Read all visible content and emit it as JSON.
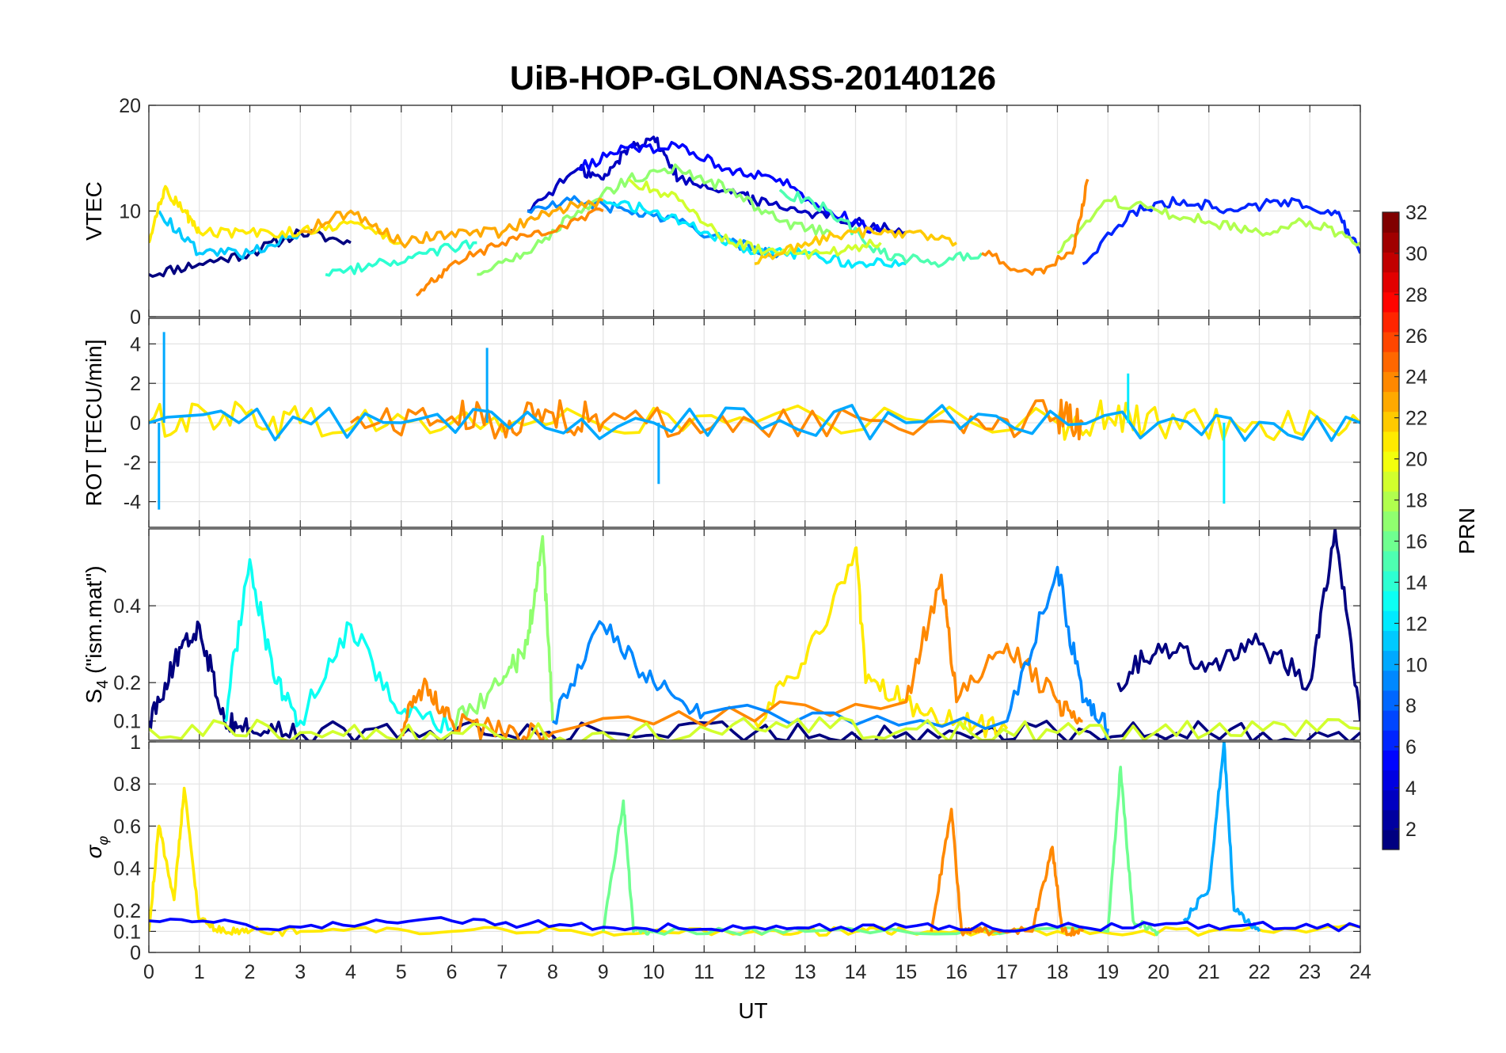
{
  "chart_data": {
    "type": "line",
    "title": "UiB-HOP-GLONASS-20140126",
    "xlabel": "UT",
    "xlim": [
      0,
      24
    ],
    "xticks": [
      "0",
      "1",
      "2",
      "3",
      "4",
      "5",
      "6",
      "7",
      "8",
      "9",
      "10",
      "11",
      "12",
      "13",
      "14",
      "15",
      "16",
      "17",
      "18",
      "19",
      "20",
      "21",
      "22",
      "23",
      "24"
    ],
    "panels": [
      {
        "name": "vtec",
        "ylabel": "VTEC",
        "ylim": [
          0,
          20
        ],
        "yticks": [
          0,
          10,
          20
        ],
        "ytick_labels": [
          "0",
          "10",
          "20"
        ],
        "series": [
          {
            "prn": 1,
            "x": [
              0,
              1,
              2,
              3,
              4
            ],
            "y": [
              4,
              5,
              6,
              8,
              7
            ]
          },
          {
            "prn": 3,
            "x": [
              7.5,
              8.5,
              9,
              9.5,
              10,
              10.5,
              11.5,
              12,
              13,
              14,
              15
            ],
            "y": [
              10,
              14,
              13,
              16,
              17,
              13,
              12,
              11,
              10,
              9,
              8
            ]
          },
          {
            "prn": 5,
            "x": [
              8.5,
              9.5,
              10.5,
              11.5,
              12.5,
              13.5,
              14.5
            ],
            "y": [
              14,
              16,
              16,
              14,
              13,
              10,
              8
            ]
          },
          {
            "prn": 6,
            "x": [
              18.5,
              19.5,
              20.5,
              21.5,
              22.5,
              23.5,
              24
            ],
            "y": [
              5,
              10,
              11,
              10,
              11,
              10,
              6
            ]
          },
          {
            "prn": 9,
            "x": [
              7.5,
              8.5,
              9.5,
              10.5,
              11.5,
              12.5
            ],
            "y": [
              10,
              11,
              10,
              9,
              7,
              6
            ]
          },
          {
            "prn": 11,
            "x": [
              0.2,
              1,
              2,
              3
            ],
            "y": [
              10,
              6,
              6,
              8
            ]
          },
          {
            "prn": 12,
            "x": [
              9,
              10,
              11,
              12,
              13,
              14,
              15
            ],
            "y": [
              11,
              10,
              8,
              6,
              6,
              5,
              5
            ]
          },
          {
            "prn": 14,
            "x": [
              3.5,
              4.5,
              5.5,
              6.5
            ],
            "y": [
              4,
              5,
              6,
              7
            ]
          },
          {
            "prn": 15,
            "x": [
              12.5,
              13.5,
              14.5,
              15.5,
              16.5
            ],
            "y": [
              12,
              10,
              6,
              5,
              6
            ]
          },
          {
            "prn": 17,
            "x": [
              6.5,
              7.5,
              8.5,
              9.5,
              10.5,
              11.5,
              12.5,
              13.5
            ],
            "y": [
              4,
              6,
              10,
              13,
              14,
              12,
              9,
              8
            ]
          },
          {
            "prn": 18,
            "x": [
              18,
              19,
              20,
              21,
              22,
              23,
              24
            ],
            "y": [
              6,
              11,
              10,
              9,
              8,
              9,
              7
            ]
          },
          {
            "prn": 19,
            "x": [
              9.5,
              10.5,
              11.5,
              12.5,
              13.5,
              14.5
            ],
            "y": [
              13,
              11,
              7,
              6,
              6,
              7
            ]
          },
          {
            "prn": 21,
            "x": [
              0,
              0.3,
              0.7,
              1,
              2,
              3,
              4,
              5
            ],
            "y": [
              7,
              12,
              10,
              8,
              8,
              8,
              9,
              7
            ]
          },
          {
            "prn": 22,
            "x": [
              12,
              13,
              14,
              15,
              16
            ],
            "y": [
              5,
              7,
              8,
              8,
              7
            ]
          },
          {
            "prn": 23,
            "x": [
              3,
              4,
              5,
              6,
              7,
              8,
              9
            ],
            "y": [
              8,
              10,
              7,
              8,
              8,
              10,
              11
            ]
          },
          {
            "prn": 24,
            "x": [
              5.3,
              6,
              7,
              8,
              9
            ],
            "y": [
              2,
              5,
              7,
              8,
              10
            ]
          },
          {
            "prn": 24,
            "x": [
              16.5,
              17.5,
              18.3,
              18.6
            ],
            "y": [
              6,
              4,
              6,
              13
            ]
          }
        ]
      },
      {
        "name": "rot",
        "ylabel": "ROT [TECU/min]",
        "ylim": [
          -5.3,
          5.3
        ],
        "yticks": [
          -4,
          -2,
          0,
          2,
          4
        ],
        "ytick_labels": [
          "-4",
          "-2",
          "0",
          "2",
          "4"
        ],
        "series": [
          {
            "prn": 21,
            "x": [
              0,
              1.5,
              3,
              6,
              8,
              12,
              18,
              19,
              20,
              22,
              24
            ],
            "y": [
              0,
              0.5,
              0,
              0,
              0,
              0,
              0,
              0.3,
              0,
              0,
              0
            ]
          },
          {
            "prn": 24,
            "x": [
              4,
              6,
              7,
              8,
              9,
              12,
              16,
              18,
              18.5
            ],
            "y": [
              0,
              0.3,
              0,
              0.5,
              0,
              0,
              0,
              0.3,
              0
            ]
          },
          {
            "prn": 10,
            "x": [
              0,
              5,
              10,
              15,
              20,
              24
            ],
            "y": [
              0,
              0,
              0,
              0,
              0,
              0
            ]
          }
        ],
        "annotations": [
          {
            "x": 0.3,
            "y": 4.6
          },
          {
            "x": 0.2,
            "y": -4.4
          },
          {
            "x": 6.7,
            "y": 3.8
          },
          {
            "x": 10.1,
            "y": -3.1
          },
          {
            "x": 21.3,
            "y": -4.1
          },
          {
            "x": 19.4,
            "y": 2.5
          }
        ]
      },
      {
        "name": "s4",
        "ylabel": "S4 (\"ism.mat\")",
        "ylim": [
          0.05,
          0.6
        ],
        "yticks": [
          0.1,
          0.2,
          0.4
        ],
        "ytick_labels": [
          "0.1",
          "0.2",
          "0.4"
        ],
        "series": [
          {
            "prn": 1,
            "x": [
              0,
              0.5,
              1,
              1.5,
              2,
              3,
              6,
              9,
              12,
              15,
              18,
              21,
              24
            ],
            "y": [
              0.1,
              0.25,
              0.35,
              0.1,
              0.08,
              0.07,
              0.07,
              0.07,
              0.07,
              0.07,
              0.07,
              0.07,
              0.07
            ]
          },
          {
            "prn": 1,
            "x": [
              19.2,
              20,
              21,
              22,
              23,
              23.5,
              24
            ],
            "y": [
              0.2,
              0.3,
              0.25,
              0.3,
              0.2,
              0.6,
              0.1
            ]
          },
          {
            "prn": 13,
            "x": [
              1.5,
              2,
              2.5,
              3,
              4,
              5,
              6
            ],
            "y": [
              0.1,
              0.52,
              0.2,
              0.1,
              0.35,
              0.12,
              0.08
            ]
          },
          {
            "prn": 17,
            "x": [
              6,
              7,
              7.5,
              7.8,
              8
            ],
            "y": [
              0.1,
              0.2,
              0.3,
              0.58,
              0.1
            ]
          },
          {
            "prn": 21,
            "x": [
              12,
              13,
              14,
              14.2,
              15,
              16,
              17
            ],
            "y": [
              0.1,
              0.25,
              0.55,
              0.2,
              0.15,
              0.1,
              0.08
            ]
          },
          {
            "prn": 24,
            "x": [
              5,
              5.5,
              6,
              7,
              8,
              15,
              15.7,
              16,
              17,
              18,
              18.5
            ],
            "y": [
              0.08,
              0.2,
              0.1,
              0.07,
              0.07,
              0.15,
              0.48,
              0.15,
              0.3,
              0.15,
              0.1
            ]
          },
          {
            "prn": 9,
            "x": [
              8,
              9,
              10,
              11,
              17,
              18,
              18.5,
              19
            ],
            "y": [
              0.1,
              0.35,
              0.2,
              0.12,
              0.1,
              0.5,
              0.15,
              0.08
            ]
          },
          {
            "prn": 19,
            "x": [
              0,
              3,
              6,
              9,
              12,
              15,
              18,
              21,
              24
            ],
            "y": [
              0.08,
              0.07,
              0.07,
              0.07,
              0.08,
              0.08,
              0.07,
              0.07,
              0.08
            ]
          }
        ]
      },
      {
        "name": "sigma_phi",
        "ylabel": "σ φ",
        "ylim": [
          0,
          1
        ],
        "yticks": [
          0,
          0.1,
          0.2,
          0.4,
          0.6,
          0.8,
          1
        ],
        "ytick_labels": [
          "0",
          "0.1",
          "0.2",
          "0.4",
          "0.6",
          "0.8",
          "1"
        ],
        "series": [
          {
            "prn": 21,
            "x": [
              0,
              0.2,
              0.5,
              0.7,
              1,
              1.5,
              2,
              3,
              6,
              9,
              12,
              14,
              15,
              18,
              21,
              24
            ],
            "y": [
              0.1,
              0.6,
              0.25,
              0.78,
              0.15,
              0.1,
              0.1,
              0.1,
              0.1,
              0.1,
              0.1,
              0.1,
              0.1,
              0.1,
              0.1,
              0.12
            ]
          },
          {
            "prn": 16,
            "x": [
              9,
              9.4,
              9.6,
              10,
              13,
              19,
              19.25,
              19.5,
              20
            ],
            "y": [
              0.1,
              0.72,
              0.1,
              0.1,
              0.1,
              0.1,
              0.88,
              0.15,
              0.1
            ]
          },
          {
            "prn": 10,
            "x": [
              20.5,
              21,
              21.3,
              21.5,
              22
            ],
            "y": [
              0.15,
              0.3,
              1.0,
              0.2,
              0.1
            ]
          },
          {
            "prn": 24,
            "x": [
              15.5,
              15.9,
              16.1,
              16.5,
              17.5,
              17.9,
              18.1,
              18.5
            ],
            "y": [
              0.1,
              0.68,
              0.1,
              0.1,
              0.1,
              0.5,
              0.1,
              0.1
            ]
          },
          {
            "prn": 5,
            "x": [
              0,
              3,
              6,
              9,
              12,
              15,
              18,
              21,
              24
            ],
            "y": [
              0.15,
              0.12,
              0.15,
              0.12,
              0.12,
              0.12,
              0.12,
              0.13,
              0.12
            ]
          }
        ]
      }
    ],
    "colorbar": {
      "label": "PRN",
      "range": [
        1,
        32
      ],
      "ticks": [
        2,
        4,
        6,
        8,
        10,
        12,
        14,
        16,
        18,
        20,
        22,
        24,
        26,
        28,
        30,
        32
      ],
      "tick_labels": [
        "2",
        "4",
        "6",
        "8",
        "10",
        "12",
        "14",
        "16",
        "18",
        "20",
        "22",
        "24",
        "26",
        "28",
        "30",
        "32"
      ],
      "colormap": "jet",
      "levels": 32
    }
  }
}
